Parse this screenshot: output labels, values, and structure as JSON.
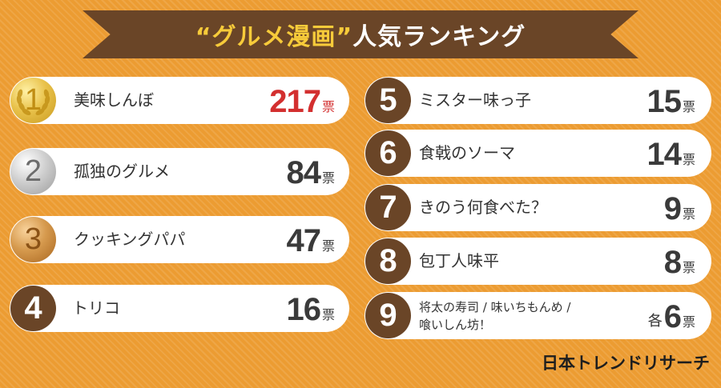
{
  "title": {
    "open_quote": "“",
    "accent": "グルメ漫画",
    "close_quote": "”",
    "rest": "人気ランキング"
  },
  "vote_unit": "票",
  "ranking": [
    {
      "rank": "1",
      "name": "美味しんぼ",
      "votes": "217",
      "medal": "gold"
    },
    {
      "rank": "2",
      "name": "孤独のグルメ",
      "votes": "84",
      "medal": "silver"
    },
    {
      "rank": "3",
      "name": "クッキングパパ",
      "votes": "47",
      "medal": "bronze"
    },
    {
      "rank": "4",
      "name": "トリコ",
      "votes": "16",
      "medal": "plain"
    },
    {
      "rank": "5",
      "name": "ミスター味っ子",
      "votes": "15",
      "medal": "plain"
    },
    {
      "rank": "6",
      "name": "食戟のソーマ",
      "votes": "14",
      "medal": "plain"
    },
    {
      "rank": "7",
      "name": "きのう何食べた？",
      "votes": "9",
      "medal": "plain"
    },
    {
      "rank": "8",
      "name": "包丁人味平",
      "votes": "8",
      "medal": "plain"
    },
    {
      "rank": "9",
      "name_line1": "将太の寿司 / 味いちもんめ /",
      "name_line2": "喰いしん坊！",
      "votes_prefix": "各",
      "votes": "6",
      "medal": "plain"
    }
  ],
  "brand": "日本トレンドリサーチ",
  "colors": {
    "background": "#ec9c32",
    "banner": "#6a4527",
    "title_accent": "#f7cb3a",
    "top_votes": "#d32f2f",
    "rank_circle": "#6a4527"
  },
  "icons": {
    "gold_medal": "laurel-wreath-gold-medal",
    "silver_medal": "silver-medal",
    "bronze_medal": "bronze-medal"
  }
}
